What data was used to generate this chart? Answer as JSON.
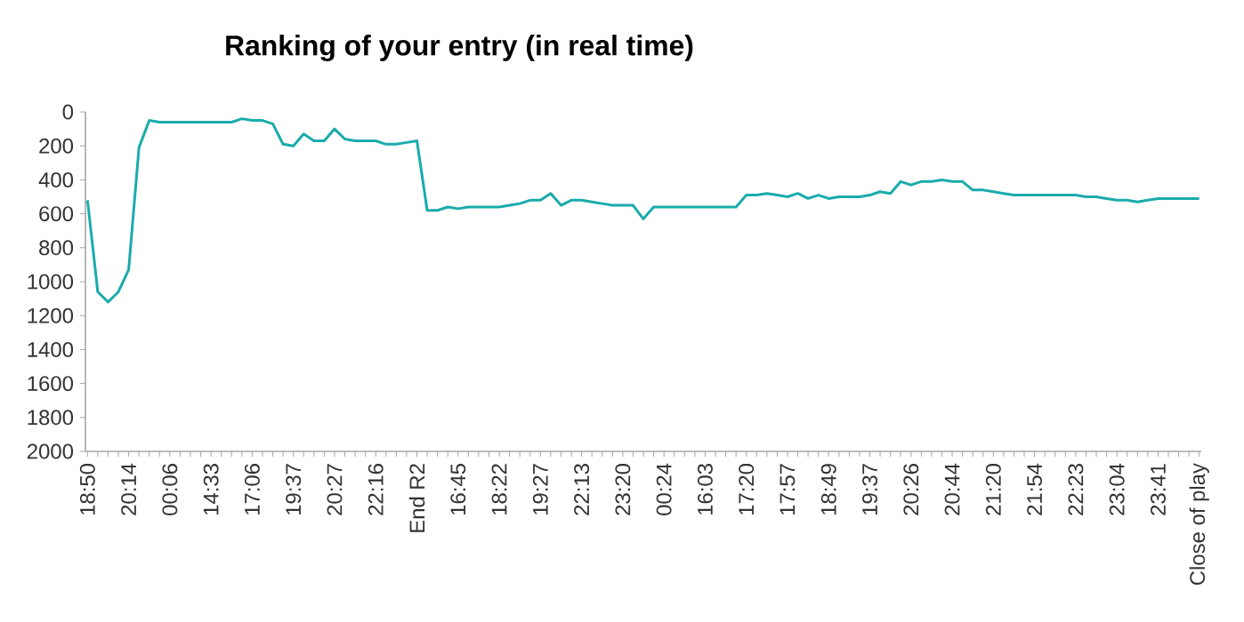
{
  "chart_data": {
    "type": "line",
    "title": "Ranking of your entry (in real time)",
    "categories": [
      "18:50",
      null,
      null,
      null,
      "20:14",
      null,
      null,
      null,
      "00:06",
      null,
      null,
      null,
      "14:33",
      null,
      null,
      null,
      "17:06",
      null,
      null,
      null,
      "19:37",
      null,
      null,
      null,
      "20:27",
      null,
      null,
      null,
      "22:16",
      null,
      null,
      null,
      "End R2",
      null,
      null,
      null,
      "16:45",
      null,
      null,
      null,
      "18:22",
      null,
      null,
      null,
      "19:27",
      null,
      null,
      null,
      "22:13",
      null,
      null,
      null,
      "23:20",
      null,
      null,
      null,
      "00:24",
      null,
      null,
      null,
      "16:03",
      null,
      null,
      null,
      "17:20",
      null,
      null,
      null,
      "17:57",
      null,
      null,
      null,
      "18:49",
      null,
      null,
      null,
      "19:37",
      null,
      null,
      null,
      "20:26",
      null,
      null,
      null,
      "20:44",
      null,
      null,
      null,
      "21:20",
      null,
      null,
      null,
      "21:54",
      null,
      null,
      null,
      "22:23",
      null,
      null,
      null,
      "23:04",
      null,
      null,
      null,
      "23:41",
      null,
      null,
      null,
      "Close of play"
    ],
    "values": [
      520,
      1060,
      1120,
      1060,
      930,
      210,
      50,
      60,
      60,
      60,
      60,
      60,
      60,
      60,
      60,
      40,
      50,
      50,
      70,
      190,
      200,
      130,
      170,
      170,
      100,
      160,
      170,
      170,
      170,
      190,
      190,
      180,
      170,
      580,
      580,
      560,
      570,
      560,
      560,
      560,
      560,
      550,
      540,
      520,
      520,
      480,
      550,
      520,
      520,
      530,
      540,
      550,
      550,
      550,
      630,
      560,
      560,
      560,
      560,
      560,
      560,
      560,
      560,
      560,
      490,
      490,
      480,
      490,
      500,
      480,
      510,
      490,
      510,
      500,
      500,
      500,
      490,
      470,
      480,
      410,
      430,
      410,
      410,
      400,
      410,
      410,
      460,
      460,
      470,
      480,
      490,
      490,
      490,
      490,
      490,
      490,
      490,
      500,
      500,
      510,
      520,
      520,
      530,
      520,
      510,
      510,
      510,
      510,
      510
    ],
    "color": "#1aabab",
    "marker": "none",
    "ylim": [
      2000,
      0
    ],
    "yticks": [
      0,
      200,
      400,
      600,
      800,
      1000,
      1200,
      1400,
      1600,
      1800,
      2000
    ]
  }
}
